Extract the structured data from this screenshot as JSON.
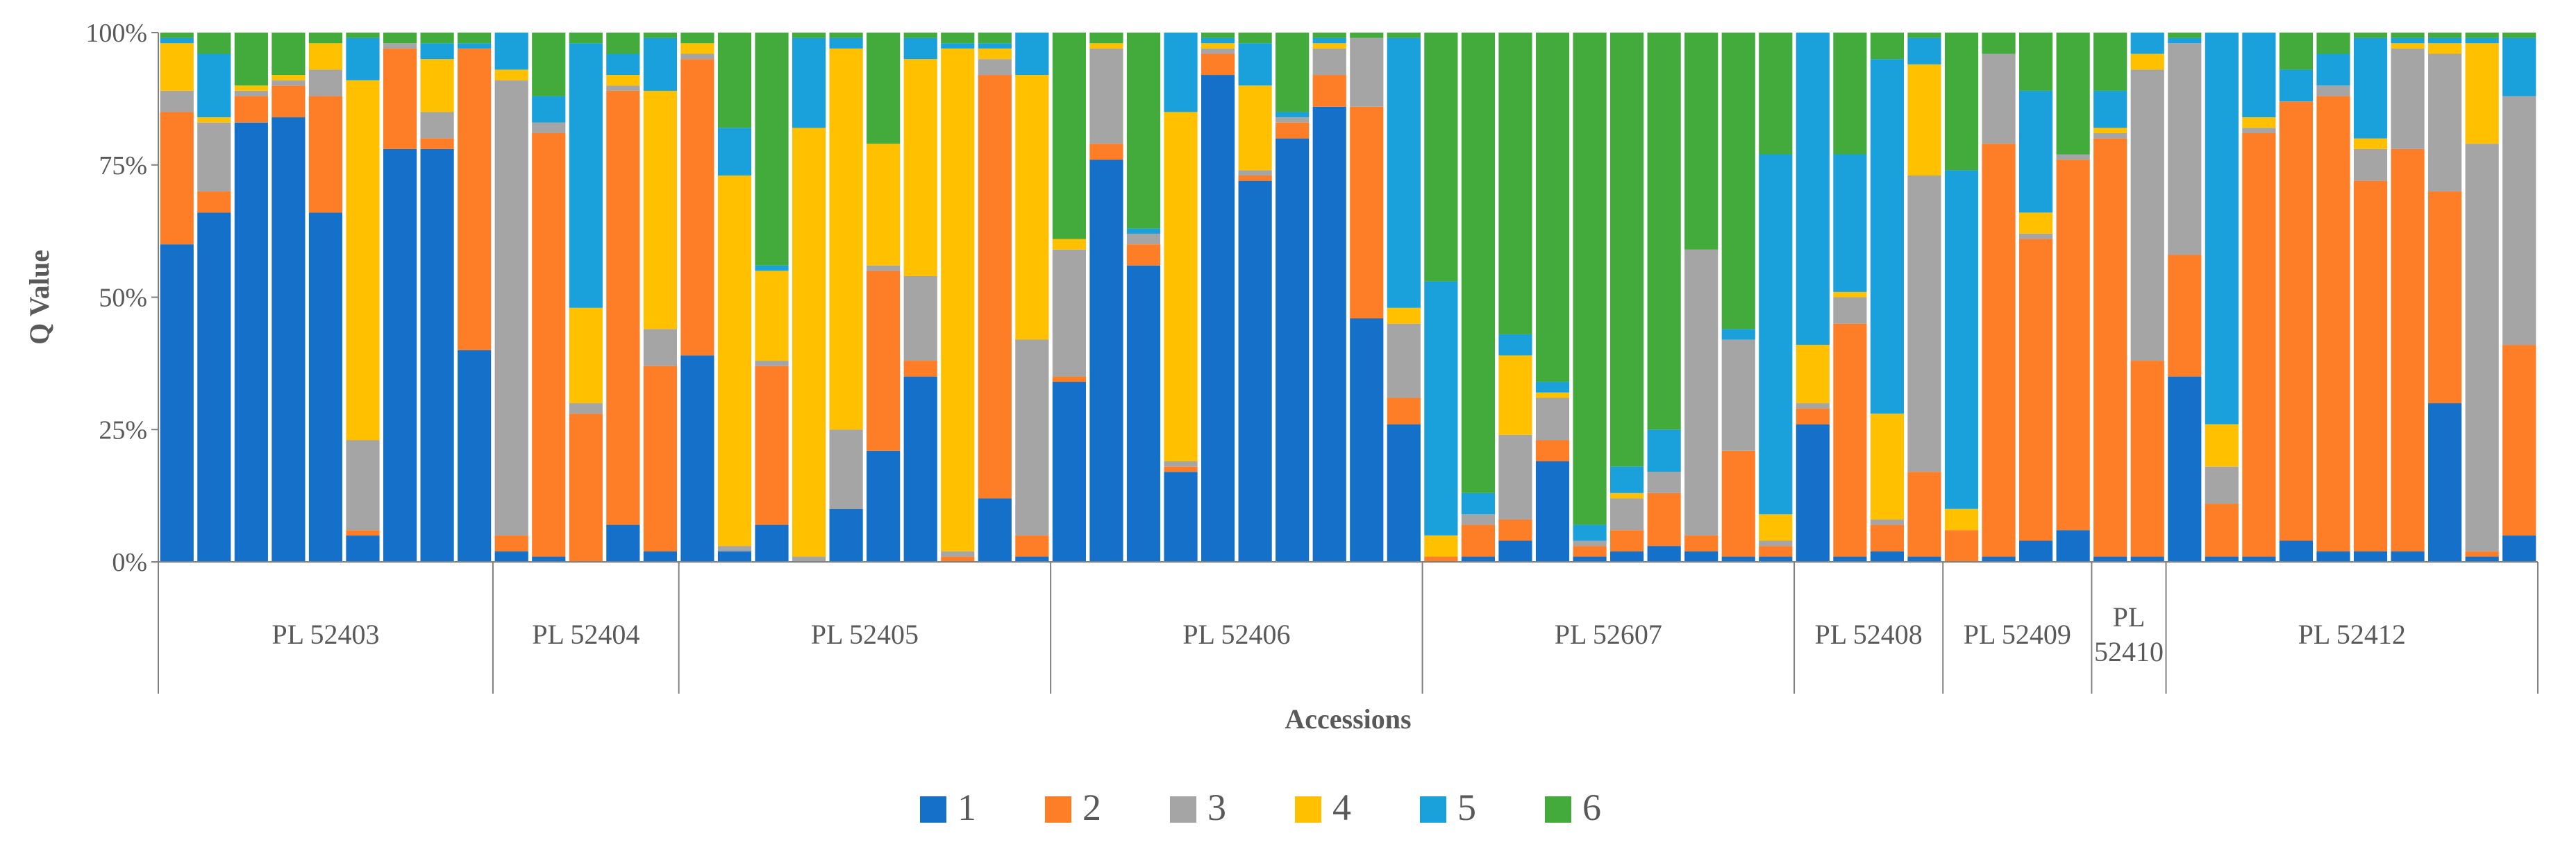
{
  "chart_data": {
    "type": "bar",
    "stacked": true,
    "percent": true,
    "xlabel": "Accessions",
    "ylabel": "Q Value",
    "ylim": [
      0,
      100
    ],
    "y_ticks": [
      "0%",
      "25%",
      "50%",
      "75%",
      "100%"
    ],
    "legend_position": "bottom",
    "grid": false,
    "colors": [
      "#1570C9",
      "#FD7E27",
      "#A5A5A5",
      "#FFC000",
      "#1AA0DB",
      "#43AA3C"
    ],
    "series_names": [
      "1",
      "2",
      "3",
      "4",
      "5",
      "6"
    ],
    "groups": [
      {
        "label": "PL 52403",
        "bars": [
          [
            60,
            25,
            4,
            9,
            1,
            1
          ],
          [
            66,
            4,
            13,
            1,
            12,
            4
          ],
          [
            83,
            5,
            1,
            1,
            0,
            10
          ],
          [
            84,
            6,
            1,
            1,
            0,
            8
          ],
          [
            66,
            22,
            5,
            5,
            0,
            2
          ],
          [
            5,
            1,
            17,
            68,
            8,
            1
          ],
          [
            78,
            19,
            1,
            0,
            0,
            2
          ],
          [
            78,
            2,
            5,
            10,
            3,
            2
          ],
          [
            40,
            57,
            0,
            0,
            1,
            2
          ]
        ]
      },
      {
        "label": "PL 52404",
        "bars": [
          [
            2,
            3,
            86,
            2,
            7,
            0
          ],
          [
            1,
            80,
            2,
            0,
            5,
            12
          ],
          [
            0,
            28,
            2,
            18,
            50,
            2
          ],
          [
            7,
            82,
            1,
            2,
            4,
            4
          ],
          [
            2,
            35,
            7,
            45,
            10,
            1
          ]
        ]
      },
      {
        "label": "PL 52405",
        "bars": [
          [
            39,
            56,
            1,
            2,
            0,
            2
          ],
          [
            2,
            0,
            1,
            70,
            9,
            18
          ],
          [
            7,
            30,
            1,
            17,
            1,
            44
          ],
          [
            0,
            0,
            1,
            81,
            17,
            1
          ],
          [
            10,
            0,
            15,
            72,
            2,
            1
          ],
          [
            21,
            34,
            1,
            23,
            0,
            21
          ],
          [
            35,
            3,
            16,
            41,
            4,
            1
          ],
          [
            0,
            1,
            1,
            95,
            1,
            2
          ],
          [
            12,
            80,
            3,
            2,
            1,
            2
          ],
          [
            1,
            4,
            37,
            50,
            8,
            0
          ]
        ]
      },
      {
        "label": "PL 52406",
        "bars": [
          [
            34,
            1,
            24,
            2,
            0,
            39
          ],
          [
            76,
            3,
            18,
            1,
            0,
            2
          ],
          [
            56,
            4,
            2,
            0,
            1,
            37
          ],
          [
            17,
            1,
            1,
            66,
            15,
            0
          ],
          [
            92,
            4,
            1,
            1,
            1,
            1
          ],
          [
            72,
            1,
            1,
            16,
            8,
            2
          ],
          [
            80,
            3,
            1,
            0,
            1,
            15
          ],
          [
            86,
            6,
            5,
            1,
            1,
            1
          ],
          [
            46,
            40,
            13,
            0,
            0,
            1
          ],
          [
            26,
            5,
            14,
            3,
            51,
            1
          ]
        ]
      },
      {
        "label": "PL 52607",
        "bars": [
          [
            0,
            1,
            0,
            4,
            48,
            47
          ],
          [
            1,
            6,
            2,
            0,
            4,
            87
          ],
          [
            4,
            4,
            16,
            15,
            4,
            57
          ],
          [
            19,
            4,
            8,
            1,
            2,
            66
          ],
          [
            1,
            2,
            1,
            0,
            3,
            93
          ],
          [
            2,
            4,
            6,
            1,
            5,
            82
          ],
          [
            3,
            10,
            4,
            0,
            8,
            75
          ],
          [
            2,
            3,
            54,
            0,
            0,
            41
          ],
          [
            1,
            20,
            21,
            0,
            2,
            56
          ],
          [
            1,
            2,
            1,
            5,
            68,
            23
          ]
        ]
      },
      {
        "label": "PL 52408",
        "bars": [
          [
            26,
            3,
            1,
            11,
            59,
            0
          ],
          [
            1,
            44,
            5,
            1,
            26,
            23
          ],
          [
            2,
            5,
            1,
            20,
            67,
            5
          ],
          [
            1,
            16,
            56,
            21,
            5,
            1
          ]
        ]
      },
      {
        "label": "PL 52409",
        "bars": [
          [
            0,
            6,
            0,
            4,
            64,
            26
          ],
          [
            1,
            78,
            17,
            0,
            0,
            4
          ],
          [
            4,
            57,
            1,
            4,
            23,
            11
          ],
          [
            6,
            70,
            1,
            0,
            0,
            23
          ]
        ]
      },
      {
        "label": "PL\n52410",
        "bars": [
          [
            1,
            79,
            1,
            1,
            7,
            11
          ],
          [
            1,
            37,
            55,
            3,
            4,
            0
          ]
        ]
      },
      {
        "label": "PL 52412",
        "bars": [
          [
            35,
            23,
            40,
            0,
            1,
            1
          ],
          [
            1,
            10,
            7,
            8,
            74,
            0
          ],
          [
            1,
            80,
            1,
            2,
            16,
            0
          ],
          [
            4,
            83,
            0,
            0,
            6,
            7
          ],
          [
            2,
            86,
            2,
            0,
            6,
            4
          ],
          [
            2,
            70,
            6,
            2,
            19,
            1
          ],
          [
            2,
            76,
            19,
            1,
            1,
            1
          ],
          [
            30,
            40,
            26,
            2,
            1,
            1
          ],
          [
            1,
            1,
            77,
            19,
            1,
            1
          ],
          [
            5,
            36,
            47,
            0,
            11,
            1
          ]
        ]
      }
    ]
  }
}
